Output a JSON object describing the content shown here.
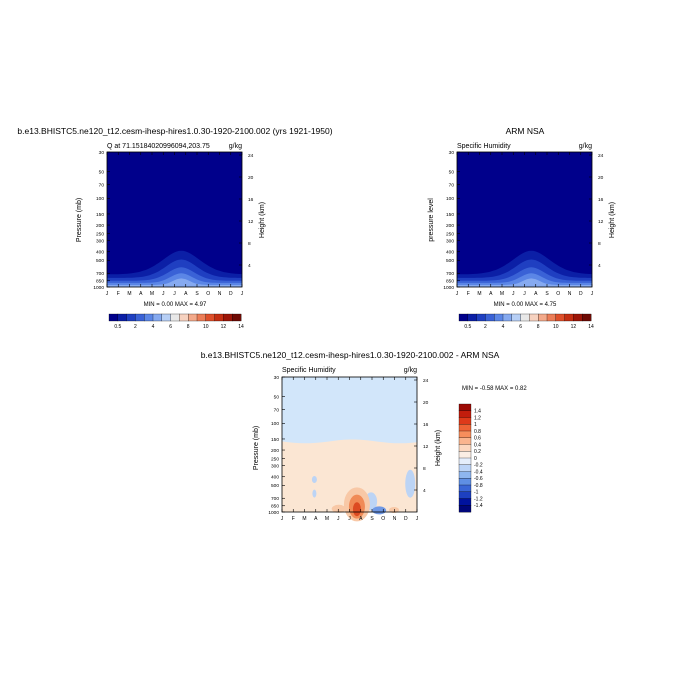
{
  "chart_data": [
    {
      "type": "heatmap",
      "title": "b.e13.BHISTC5.ne120_t12.cesm-ihesp-hires1.0.30-1920-2100.002 (yrs 1921-1950)",
      "left_subtitle": "Q at 71.15184020996094,203.75",
      "right_subtitle": "g/kg",
      "ylabel": "Pressure (mb)",
      "ylabel_right": "Height (km)",
      "x_ticks": [
        "J",
        "F",
        "M",
        "A",
        "M",
        "J",
        "J",
        "A",
        "S",
        "O",
        "N",
        "D",
        "J"
      ],
      "p_ticks": [
        "30",
        "50",
        "70",
        "100",
        "150",
        "200",
        "250",
        "300",
        "400",
        "500",
        "700",
        "850",
        "1000"
      ],
      "h_ticks": [
        "4",
        "8",
        "12",
        "16",
        "20",
        "24"
      ],
      "stats": "MIN =   0.00 MAX =   4.97",
      "colorbar_labels": [
        "0.5",
        "2",
        "4",
        "6",
        "8",
        "10",
        "12",
        "14"
      ],
      "levels": [
        0.5,
        1,
        2,
        3,
        4,
        5
      ]
    },
    {
      "type": "heatmap",
      "title": "ARM NSA",
      "left_subtitle": "Specific Humidity",
      "right_subtitle": "g/kg",
      "ylabel": "pressure level",
      "ylabel_right": "Height (km)",
      "x_ticks": [
        "J",
        "F",
        "M",
        "A",
        "M",
        "J",
        "J",
        "A",
        "S",
        "O",
        "N",
        "D",
        "J"
      ],
      "p_ticks": [
        "30",
        "50",
        "70",
        "100",
        "150",
        "200",
        "250",
        "300",
        "400",
        "500",
        "700",
        "850",
        "1000"
      ],
      "h_ticks": [
        "4",
        "8",
        "12",
        "16",
        "20",
        "24"
      ],
      "stats": "MIN =   0.00 MAX =   4.75",
      "colorbar_labels": [
        "0.5",
        "2",
        "4",
        "6",
        "8",
        "10",
        "12",
        "14"
      ],
      "levels": [
        0.5,
        1,
        2,
        3,
        4,
        5
      ]
    },
    {
      "type": "heatmap",
      "title": "b.e13.BHISTC5.ne120_t12.cesm-ihesp-hires1.0.30-1920-2100.002 - ARM NSA",
      "left_subtitle": "Specific Humidity",
      "right_subtitle": "g/kg",
      "ylabel": "Pressure (mb)",
      "ylabel_right": "Height (km)",
      "x_ticks": [
        "J",
        "F",
        "M",
        "A",
        "M",
        "J",
        "J",
        "A",
        "S",
        "O",
        "N",
        "D",
        "J"
      ],
      "p_ticks": [
        "30",
        "50",
        "70",
        "100",
        "150",
        "200",
        "250",
        "300",
        "400",
        "500",
        "700",
        "850",
        "1000"
      ],
      "h_ticks": [
        "4",
        "8",
        "12",
        "16",
        "20",
        "24"
      ],
      "stats": "MIN =  -0.58 MAX =   0.82",
      "colorbar_labels": [
        "1.4",
        "1.2",
        "1",
        "0.8",
        "0.6",
        "0.4",
        "0.2",
        "0",
        "-0.2",
        "-0.4",
        "-0.6",
        "-0.8",
        "-1",
        "-1.2",
        "-1.4"
      ]
    }
  ],
  "colors": {
    "seq_bar": [
      "#00008b",
      "#0b1fa6",
      "#1f3fc1",
      "#3a62d6",
      "#5b86e6",
      "#86aaf0",
      "#b7cff5",
      "#e8e8e8",
      "#f6d2c0",
      "#f3a98a",
      "#ec7d57",
      "#de4f2a",
      "#c42e12",
      "#9c1508",
      "#6e0a04"
    ],
    "seq_fill": [
      "#00008b",
      "#0b1fa6",
      "#1f3fc1",
      "#3a62d6",
      "#5b86e6",
      "#86aaf0"
    ],
    "diff_bar": [
      "#9c0a05",
      "#c21d0c",
      "#de3a1a",
      "#ee6436",
      "#f78e5c",
      "#fab48e",
      "#fcd7bf",
      "#fbeee4",
      "#e5eefb",
      "#bcd4f7",
      "#8eb6ef",
      "#5f8fe4",
      "#3a66d6",
      "#1d40c0",
      "#00129e",
      "#00067a"
    ],
    "diff_pos_light": "#fbe6d3",
    "diff_neg_light": "#d2e6fa",
    "diff_pos_mid": "#f8c8a6",
    "diff_pos_strong": "#f08a56",
    "diff_pos_peak": "#dc4a22",
    "diff_neg_mid": "#bcd4f5",
    "diff_neg_strong": "#6f98e4"
  }
}
